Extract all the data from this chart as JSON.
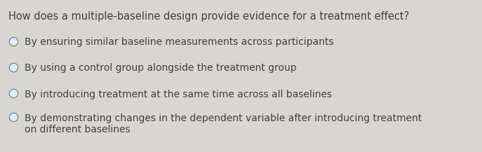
{
  "question": "How does a multiple-baseline design provide evidence for a treatment effect?",
  "options": [
    "By ensuring similar baseline measurements across participants",
    "By using a control group alongside the treatment group",
    "By introducing treatment at the same time across all baselines",
    "By demonstrating changes in the dependent variable after introducing treatment\non different baselines"
  ],
  "background_color": "#d8d6d3",
  "text_color": "#404040",
  "question_fontsize": 10.5,
  "option_fontsize": 10.0,
  "circle_edge_color": "#888888",
  "circle_face_color": "#ddeeff",
  "circle_linewidth": 1.0,
  "circle_size": 80
}
